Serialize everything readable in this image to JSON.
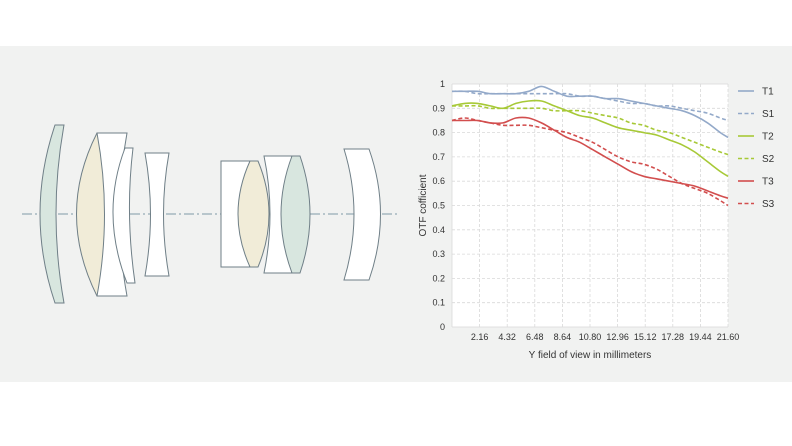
{
  "optical_diagram": {
    "axis_style": "dash-dot",
    "element_count": 9
  },
  "chart_data": {
    "type": "line",
    "xlabel": "Y field of view in millimeters",
    "ylabel": "OTF cofficient",
    "xlim": [
      0,
      21.6
    ],
    "ylim": [
      0,
      1
    ],
    "x_ticks": [
      "2.16",
      "4.32",
      "6.48",
      "8.64",
      "10.80",
      "12.96",
      "15.12",
      "17.28",
      "19.44",
      "21.60"
    ],
    "y_ticks": [
      "0",
      "0.1",
      "0.2",
      "0.3",
      "0.4",
      "0.5",
      "0.6",
      "0.7",
      "0.8",
      "0.9",
      "1"
    ],
    "grid": true,
    "legend_position": "right",
    "x": [
      0,
      1,
      2,
      3,
      4,
      5,
      6,
      7,
      8,
      9,
      10,
      11,
      12,
      13,
      14,
      15,
      16,
      17,
      18,
      19,
      20,
      21,
      21.6
    ],
    "series": [
      {
        "name": "T1",
        "color": "#93a9c9",
        "dash": false,
        "values": [
          0.97,
          0.97,
          0.97,
          0.96,
          0.96,
          0.96,
          0.97,
          0.99,
          0.97,
          0.95,
          0.95,
          0.95,
          0.94,
          0.94,
          0.93,
          0.92,
          0.91,
          0.9,
          0.89,
          0.87,
          0.84,
          0.8,
          0.78
        ]
      },
      {
        "name": "S1",
        "color": "#93a9c9",
        "dash": true,
        "values": [
          0.97,
          0.97,
          0.96,
          0.96,
          0.96,
          0.96,
          0.96,
          0.96,
          0.96,
          0.96,
          0.95,
          0.95,
          0.94,
          0.93,
          0.92,
          0.92,
          0.91,
          0.91,
          0.9,
          0.89,
          0.88,
          0.86,
          0.85
        ]
      },
      {
        "name": "T2",
        "color": "#a7c937",
        "dash": false,
        "values": [
          0.91,
          0.92,
          0.92,
          0.91,
          0.9,
          0.92,
          0.93,
          0.93,
          0.91,
          0.89,
          0.87,
          0.86,
          0.84,
          0.82,
          0.81,
          0.8,
          0.79,
          0.77,
          0.75,
          0.72,
          0.68,
          0.64,
          0.62
        ]
      },
      {
        "name": "S2",
        "color": "#a7c937",
        "dash": true,
        "values": [
          0.91,
          0.91,
          0.91,
          0.9,
          0.9,
          0.9,
          0.9,
          0.9,
          0.89,
          0.89,
          0.89,
          0.88,
          0.87,
          0.86,
          0.84,
          0.83,
          0.81,
          0.8,
          0.78,
          0.76,
          0.74,
          0.72,
          0.71
        ]
      },
      {
        "name": "T3",
        "color": "#d24e4e",
        "dash": false,
        "values": [
          0.85,
          0.85,
          0.85,
          0.84,
          0.84,
          0.86,
          0.86,
          0.84,
          0.81,
          0.78,
          0.76,
          0.73,
          0.7,
          0.67,
          0.64,
          0.62,
          0.61,
          0.6,
          0.59,
          0.58,
          0.56,
          0.54,
          0.53
        ]
      },
      {
        "name": "S3",
        "color": "#d24e4e",
        "dash": true,
        "values": [
          0.85,
          0.86,
          0.85,
          0.84,
          0.83,
          0.83,
          0.83,
          0.82,
          0.81,
          0.8,
          0.78,
          0.76,
          0.73,
          0.7,
          0.68,
          0.67,
          0.65,
          0.62,
          0.59,
          0.57,
          0.55,
          0.52,
          0.5
        ]
      }
    ]
  }
}
